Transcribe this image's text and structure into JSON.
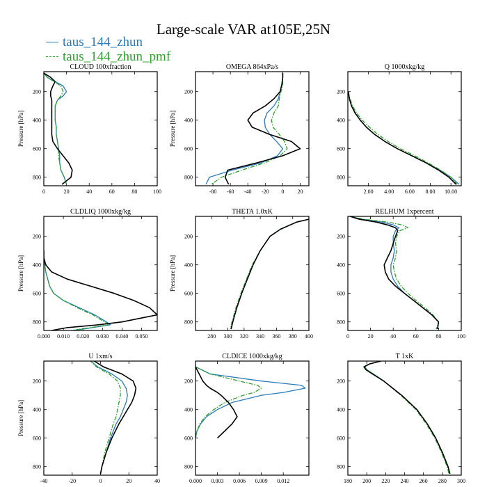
{
  "page": {
    "title": "Large-scale VAR at105E,25N"
  },
  "colors": {
    "series1": "#2a7ab8",
    "series2": "#2ca02c",
    "series3": "#000000"
  },
  "legend": [
    {
      "label": "taus_144_zhun",
      "color": "#2a7ab8",
      "dash": "solid"
    },
    {
      "label": "taus_144_zhun_pmf",
      "color": "#2ca02c",
      "dash": "dash-dot"
    }
  ],
  "chart_data": [
    {
      "type": "line",
      "title": "CLOUD  100xfraction",
      "xlabel": "",
      "ylabel": "Pressure [hPa]",
      "xlim": [
        0,
        100
      ],
      "ylim": [
        860,
        60
      ],
      "xticks": [
        "0",
        "20",
        "40",
        "60",
        "80",
        "100"
      ],
      "yticks": [
        200,
        400,
        600,
        800
      ],
      "grid": false,
      "y": [
        70,
        100,
        130,
        160,
        200,
        230,
        260,
        300,
        350,
        400,
        450,
        500,
        550,
        600,
        650,
        700,
        750,
        800,
        850
      ],
      "series": [
        {
          "name": "taus_144_zhun",
          "x": [
            0,
            3,
            10,
            17,
            20,
            17,
            12,
            10,
            10,
            10,
            11,
            11,
            12,
            13,
            14,
            14,
            15,
            18,
            20
          ]
        },
        {
          "name": "taus_144_zhun_pmf",
          "x": [
            0,
            3,
            9,
            15,
            17,
            15,
            12,
            10,
            10,
            10,
            11,
            11,
            12,
            13,
            13,
            14,
            15,
            18,
            20
          ]
        },
        {
          "name": "",
          "x": [
            0,
            6,
            10,
            8,
            6,
            6,
            7,
            7,
            7,
            7,
            7,
            7,
            8,
            12,
            17,
            22,
            25,
            24,
            16
          ]
        }
      ]
    },
    {
      "type": "line",
      "title": "OMEGA  864xPa/s",
      "xlabel": "",
      "ylabel": "Pressure [hPa]",
      "xlim": [
        -100,
        30
      ],
      "ylim": [
        860,
        60
      ],
      "xticks": [
        "-80",
        "-60",
        "-40",
        "-20",
        "0",
        "20"
      ],
      "yticks": [
        200,
        400,
        600,
        800
      ],
      "grid": false,
      "y": [
        70,
        100,
        150,
        200,
        250,
        300,
        350,
        400,
        450,
        500,
        550,
        600,
        650,
        700,
        750,
        800,
        850
      ],
      "series": [
        {
          "name": "taus_144_zhun",
          "x": [
            0,
            0,
            -1,
            -3,
            -5,
            -10,
            -18,
            -21,
            -20,
            -15,
            -7,
            0,
            -6,
            -25,
            -58,
            -84,
            -88
          ]
        },
        {
          "name": "taus_144_zhun_pmf",
          "x": [
            0,
            0,
            0,
            -2,
            -4,
            -5,
            -10,
            -13,
            -11,
            -4,
            2,
            5,
            -3,
            -21,
            -47,
            -70,
            -82
          ]
        },
        {
          "name": "",
          "x": [
            0,
            0,
            -1,
            -3,
            -10,
            -20,
            -34,
            -40,
            -35,
            -15,
            10,
            20,
            0,
            -30,
            -63,
            -66,
            -62
          ]
        }
      ]
    },
    {
      "type": "line",
      "title": "Q  1000xkg/kg",
      "xlabel": "",
      "ylabel": "",
      "xlim": [
        0,
        11
      ],
      "ylim": [
        860,
        60
      ],
      "xticks": [
        "2.00",
        "4.00",
        "6.00",
        "8.00",
        "10.00"
      ],
      "yticks": [
        200,
        400,
        600,
        800
      ],
      "grid": false,
      "y": [
        200,
        250,
        300,
        350,
        400,
        450,
        500,
        550,
        600,
        650,
        700,
        750,
        800,
        850
      ],
      "series": [
        {
          "name": "taus_144_zhun",
          "x": [
            0.05,
            0.15,
            0.35,
            0.7,
            1.2,
            1.8,
            2.6,
            3.6,
            4.8,
            6.2,
            7.6,
            8.9,
            10.0,
            10.8
          ]
        },
        {
          "name": "taus_144_zhun_pmf",
          "x": [
            0.05,
            0.2,
            0.45,
            0.85,
            1.4,
            2.1,
            2.9,
            3.9,
            5.1,
            6.5,
            7.8,
            9.0,
            10.0,
            10.6
          ]
        },
        {
          "name": "",
          "x": [
            0.05,
            0.15,
            0.35,
            0.7,
            1.2,
            1.8,
            2.6,
            3.6,
            4.8,
            6.2,
            7.6,
            8.8,
            9.8,
            10.5
          ]
        }
      ]
    },
    {
      "type": "line",
      "title": "CLDLIQ  1000xkg/kg",
      "xlabel": "",
      "ylabel": "Pressure [hPa]",
      "xlim": [
        0,
        0.058
      ],
      "ylim": [
        860,
        60
      ],
      "xticks": [
        "0.000",
        "0.010",
        "0.020",
        "0.030",
        "0.040",
        "0.050"
      ],
      "yticks": [
        200,
        400,
        600,
        800
      ],
      "grid": false,
      "y": [
        300,
        350,
        400,
        450,
        500,
        550,
        600,
        650,
        700,
        750,
        800,
        820,
        840,
        860
      ],
      "series": [
        {
          "name": "taus_144_zhun",
          "x": [
            0,
            0,
            0.0005,
            0.001,
            0.002,
            0.003,
            0.005,
            0.01,
            0.018,
            0.026,
            0.032,
            0.034,
            0.025,
            0.015
          ]
        },
        {
          "name": "taus_144_zhun_pmf",
          "x": [
            0,
            0,
            0.0005,
            0.001,
            0.002,
            0.003,
            0.005,
            0.01,
            0.017,
            0.025,
            0.031,
            0.033,
            0.024,
            0.014
          ]
        },
        {
          "name": "",
          "x": [
            0,
            0,
            0.001,
            0.004,
            0.012,
            0.024,
            0.036,
            0.046,
            0.054,
            0.058,
            0.04,
            0.028,
            0.012,
            0.004
          ]
        }
      ]
    },
    {
      "type": "line",
      "title": "THETA  1.0xK",
      "xlabel": "",
      "ylabel": "Pressure [hPa]",
      "xlim": [
        260,
        400
      ],
      "ylim": [
        860,
        60
      ],
      "xticks": [
        "280",
        "300",
        "320",
        "340",
        "360",
        "380",
        "400"
      ],
      "yticks": [
        200,
        400,
        600,
        800
      ],
      "grid": false,
      "y": [
        80,
        100,
        150,
        200,
        300,
        400,
        500,
        600,
        700,
        800,
        850
      ],
      "series": [
        {
          "name": "taus_144_zhun",
          "x": [
            400,
            385,
            365,
            352,
            340,
            331,
            324,
            317,
            311,
            306,
            304
          ]
        },
        {
          "name": "taus_144_zhun_pmf",
          "x": [
            400,
            385,
            365,
            352,
            340,
            330,
            323,
            316,
            310,
            305,
            303
          ]
        },
        {
          "name": "",
          "x": [
            400,
            385,
            365,
            352,
            340,
            331,
            324,
            317,
            311,
            306,
            304
          ]
        }
      ]
    },
    {
      "type": "line",
      "title": "RELHUM  1xpercent",
      "xlabel": "",
      "ylabel": "",
      "xlim": [
        0,
        100
      ],
      "ylim": [
        860,
        60
      ],
      "xticks": [
        "0",
        "20",
        "40",
        "60",
        "80",
        "100"
      ],
      "yticks": [
        200,
        400,
        600,
        800
      ],
      "grid": false,
      "y": [
        60,
        80,
        100,
        120,
        140,
        160,
        200,
        250,
        300,
        350,
        400,
        450,
        500,
        550,
        600,
        650,
        700,
        750,
        800,
        850
      ],
      "series": [
        {
          "name": "taus_144_zhun",
          "x": [
            2,
            12,
            30,
            40,
            45,
            42,
            40,
            40,
            41,
            40,
            38,
            38,
            40,
            44,
            50,
            58,
            66,
            74,
            80,
            79
          ]
        },
        {
          "name": "taus_144_zhun_pmf",
          "x": [
            2,
            14,
            35,
            48,
            53,
            46,
            43,
            42,
            43,
            42,
            40,
            41,
            43,
            47,
            53,
            60,
            68,
            75,
            80,
            78
          ]
        },
        {
          "name": "",
          "x": [
            2,
            10,
            25,
            35,
            42,
            44,
            42,
            40,
            38,
            35,
            32,
            33,
            36,
            42,
            50,
            58,
            66,
            74,
            80,
            79
          ]
        }
      ]
    },
    {
      "type": "line",
      "title": "U  1xm/s",
      "xlabel": "",
      "ylabel": "Pressure [hPa]",
      "xlim": [
        -40,
        40
      ],
      "ylim": [
        860,
        60
      ],
      "xticks": [
        "-40",
        "-20",
        "0",
        "20",
        "40"
      ],
      "yticks": [
        200,
        400,
        600,
        800
      ],
      "grid": false,
      "y": [
        50,
        100,
        150,
        200,
        250,
        300,
        350,
        400,
        450,
        500,
        600,
        700,
        800,
        850
      ],
      "series": [
        {
          "name": "taus_144_zhun",
          "x": [
            -8,
            -2,
            8,
            15,
            18,
            19,
            18,
            16,
            14,
            11,
            7,
            4,
            1,
            0
          ]
        },
        {
          "name": "taus_144_zhun_pmf",
          "x": [
            -8,
            -3,
            6,
            12,
            14,
            14,
            13,
            12,
            11,
            9,
            6,
            3,
            1,
            0
          ]
        },
        {
          "name": "",
          "x": [
            -6,
            2,
            15,
            23,
            25,
            24,
            22,
            19,
            16,
            13,
            8,
            4,
            1,
            0
          ]
        }
      ]
    },
    {
      "type": "line",
      "title": "CLDICE  1000xkg/kg",
      "xlabel": "",
      "ylabel": "",
      "xlim": [
        0,
        0.0155
      ],
      "ylim": [
        860,
        60
      ],
      "xticks": [
        "0.000",
        "0.003",
        "0.006",
        "0.009",
        "0.012"
      ],
      "yticks": [
        200,
        400,
        600,
        800
      ],
      "grid": false,
      "y": [
        100,
        150,
        200,
        230,
        250,
        280,
        300,
        350,
        400,
        450,
        500,
        550,
        600
      ],
      "series": [
        {
          "name": "taus_144_zhun",
          "x": [
            0,
            0.002,
            0.009,
            0.0145,
            0.015,
            0.012,
            0.009,
            0.005,
            0.003,
            0.0015,
            0.0007,
            0.0002,
            0
          ]
        },
        {
          "name": "taus_144_zhun_pmf",
          "x": [
            0,
            0.002,
            0.006,
            0.0085,
            0.009,
            0.008,
            0.0065,
            0.004,
            0.0025,
            0.0013,
            0.0006,
            0.0002,
            0
          ]
        },
        {
          "name": "",
          "x": [
            0,
            0.0005,
            0.001,
            0.0015,
            0.002,
            0.003,
            0.0035,
            0.0045,
            0.0052,
            0.0057,
            0.005,
            0.004,
            0.003
          ]
        }
      ]
    },
    {
      "type": "line",
      "title": "T  1xK",
      "xlabel": "",
      "ylabel": "",
      "xlim": [
        180,
        300
      ],
      "ylim": [
        860,
        60
      ],
      "xticks": [
        "180",
        "200",
        "220",
        "240",
        "260",
        "280",
        "300"
      ],
      "yticks": [
        200,
        400,
        600,
        800
      ],
      "grid": false,
      "y": [
        60,
        80,
        100,
        120,
        150,
        200,
        300,
        400,
        500,
        600,
        700,
        800,
        850
      ],
      "series": [
        {
          "name": "taus_144_zhun",
          "x": [
            215,
            203,
            198,
            200,
            207,
            218,
            237,
            253,
            264,
            273,
            280,
            286,
            288
          ]
        },
        {
          "name": "taus_144_zhun_pmf",
          "x": [
            215,
            203,
            198,
            200,
            207,
            218,
            236,
            252,
            263,
            272,
            279,
            285,
            287
          ]
        },
        {
          "name": "",
          "x": [
            215,
            203,
            197,
            199,
            206,
            218,
            237,
            253,
            264,
            273,
            280,
            286,
            288
          ]
        }
      ]
    }
  ]
}
